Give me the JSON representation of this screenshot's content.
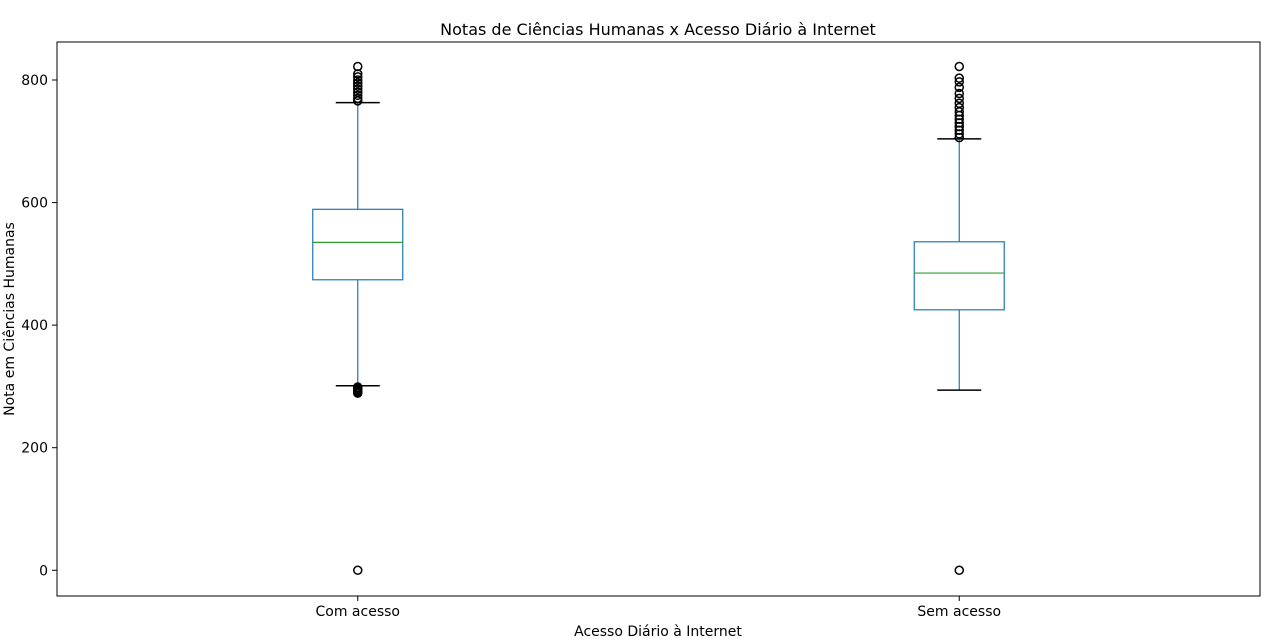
{
  "chart_data": {
    "type": "box",
    "title": "Notas de Ciências Humanas x Acesso Diário à Internet",
    "xlabel": "Acesso Diário à Internet",
    "ylabel": "Nota em Ciências Humanas",
    "ylim": [
      -42,
      862
    ],
    "yticks": [
      0,
      200,
      400,
      600,
      800
    ],
    "grid": false,
    "categories": [
      "Com acesso",
      "Sem acesso"
    ],
    "boxes": [
      {
        "category": "Com acesso",
        "whisker_low": 301,
        "q1": 474,
        "median": 535,
        "q3": 589,
        "whisker_high": 763,
        "outliers_low": [
          0,
          289,
          291,
          293,
          295,
          297,
          299
        ],
        "outliers_high": [
          766,
          770,
          775,
          780,
          785,
          790,
          795,
          800,
          805,
          810,
          822
        ]
      },
      {
        "category": "Sem acesso",
        "whisker_low": 294,
        "q1": 425,
        "median": 485,
        "q3": 536,
        "whisker_high": 704,
        "outliers_low": [
          0
        ],
        "outliers_high": [
          706,
          712,
          718,
          724,
          730,
          736,
          742,
          748,
          755,
          762,
          770,
          778,
          788,
          797,
          803,
          822
        ]
      }
    ],
    "colors": {
      "box": "#1f77b4",
      "median": "#2ca02c",
      "whisker_cap": "#000000",
      "outlier": "#000000"
    }
  }
}
